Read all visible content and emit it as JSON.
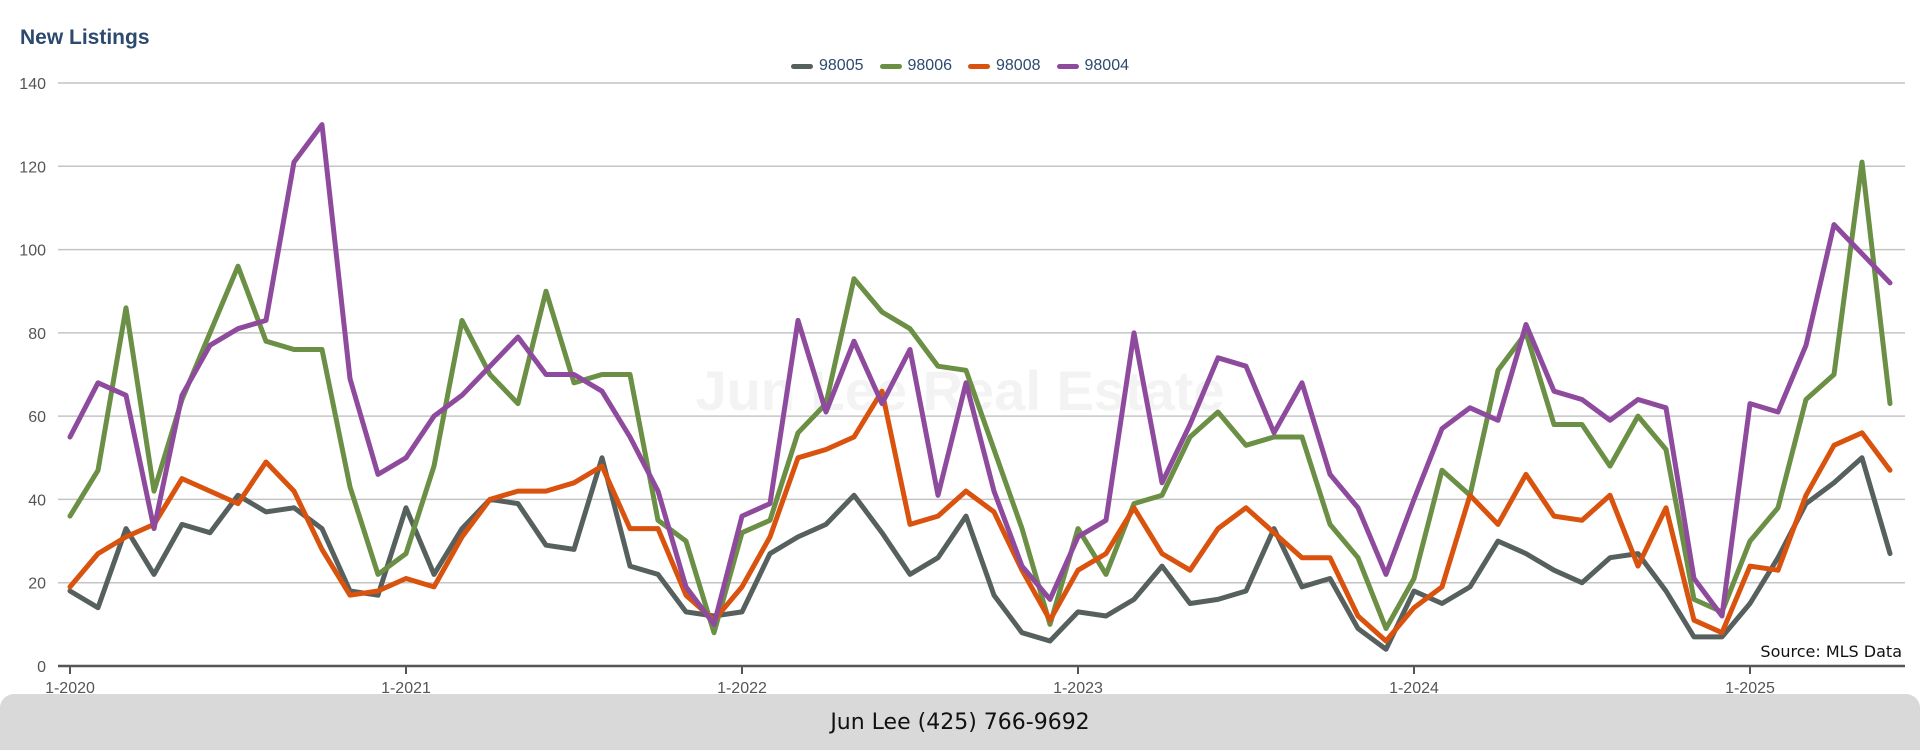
{
  "chart_data": {
    "type": "line",
    "title": "New Listings",
    "watermark": "Jun Lee Real Estate",
    "source_note": "Source: MLS Data",
    "ylim": [
      0,
      140
    ],
    "y_ticks": [
      0,
      20,
      40,
      60,
      80,
      100,
      120,
      140
    ],
    "x_tick_labels": [
      "1-2020",
      "1-2021",
      "1-2022",
      "1-2023",
      "1-2024",
      "1-2025"
    ],
    "x_start": "2020-01",
    "x_interval": "monthly",
    "grid": true,
    "legend_position": "top-center",
    "series": [
      {
        "name": "98005",
        "color": "#56605e",
        "values": [
          18,
          14,
          33,
          22,
          34,
          32,
          41,
          37,
          38,
          33,
          18,
          17,
          38,
          22,
          33,
          40,
          39,
          29,
          28,
          50,
          24,
          22,
          13,
          12,
          13,
          27,
          31,
          34,
          41,
          32,
          22,
          26,
          36,
          17,
          8,
          6,
          13,
          12,
          16,
          24,
          15,
          16,
          18,
          33,
          19,
          21,
          9,
          4,
          18,
          15,
          19,
          30,
          27,
          23,
          20,
          26,
          27,
          18,
          7,
          7,
          15,
          26,
          39,
          44,
          50,
          27
        ]
      },
      {
        "name": "98006",
        "color": "#6a8f45",
        "values": [
          36,
          47,
          86,
          42,
          64,
          80,
          96,
          78,
          76,
          76,
          43,
          22,
          27,
          48,
          83,
          70,
          63,
          90,
          68,
          70,
          70,
          35,
          30,
          8,
          32,
          35,
          56,
          63,
          93,
          85,
          81,
          72,
          71,
          52,
          33,
          10,
          33,
          22,
          39,
          41,
          55,
          61,
          53,
          55,
          55,
          34,
          26,
          9,
          21,
          47,
          41,
          71,
          80,
          58,
          58,
          48,
          60,
          52,
          16,
          13,
          30,
          38,
          64,
          70,
          121,
          63
        ]
      },
      {
        "name": "98008",
        "color": "#d9520e",
        "values": [
          19,
          27,
          31,
          34,
          45,
          42,
          39,
          49,
          42,
          28,
          17,
          18,
          21,
          19,
          31,
          40,
          42,
          42,
          44,
          48,
          33,
          33,
          17,
          11,
          19,
          31,
          50,
          52,
          55,
          66,
          34,
          36,
          42,
          37,
          23,
          11,
          23,
          27,
          38,
          27,
          23,
          33,
          38,
          32,
          26,
          26,
          12,
          6,
          14,
          19,
          41,
          34,
          46,
          36,
          35,
          41,
          24,
          38,
          11,
          8,
          24,
          23,
          41,
          53,
          56,
          47
        ]
      },
      {
        "name": "98004",
        "color": "#8e4b9d",
        "values": [
          55,
          68,
          65,
          33,
          65,
          77,
          81,
          83,
          121,
          130,
          69,
          46,
          50,
          60,
          65,
          72,
          79,
          70,
          70,
          66,
          55,
          42,
          19,
          10,
          36,
          39,
          83,
          61,
          78,
          63,
          76,
          41,
          68,
          42,
          24,
          16,
          31,
          35,
          80,
          44,
          58,
          74,
          72,
          56,
          68,
          46,
          38,
          22,
          40,
          57,
          62,
          59,
          82,
          66,
          64,
          59,
          64,
          62,
          21,
          12,
          63,
          61,
          77,
          106,
          99,
          92
        ]
      }
    ]
  },
  "footer": {
    "contact": "Jun Lee (425) 766-9692"
  }
}
